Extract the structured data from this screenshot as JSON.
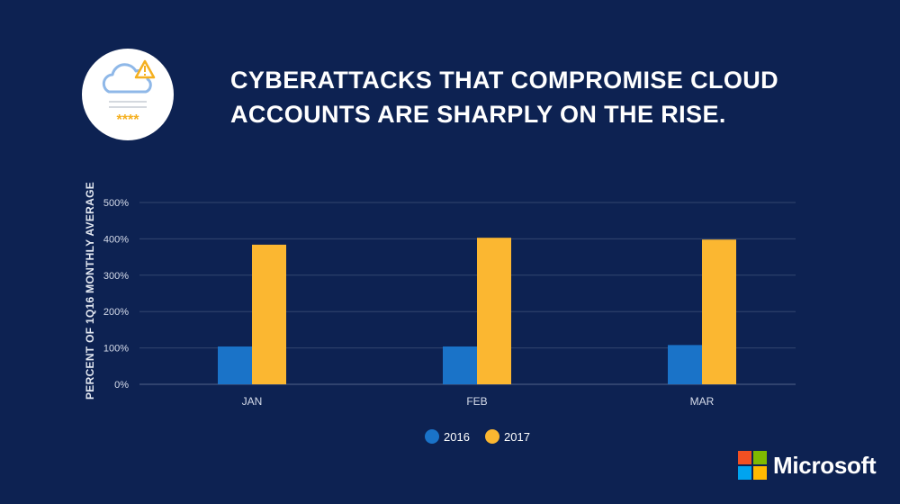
{
  "title_lines": [
    "CYBERATTACKS THAT COMPROMISE CLOUD",
    "ACCOUNTS ARE SHARPLY ON THE RISE."
  ],
  "badge": {
    "icon": "cloud-warning-icon",
    "password_mask": "****"
  },
  "brand": {
    "name": "Microsoft",
    "colors": [
      "#f25022",
      "#7fba00",
      "#00a4ef",
      "#ffb900"
    ]
  },
  "chart_data": {
    "type": "bar",
    "ylabel": "PERCENT OF 1Q16 MONTHLY AVERAGE",
    "xlabel": "",
    "categories": [
      "JAN",
      "FEB",
      "MAR"
    ],
    "ylim": [
      0,
      500
    ],
    "yticks": [
      "0%",
      "100%",
      "200%",
      "300%",
      "400%",
      "500%"
    ],
    "yticks_values": [
      0,
      100,
      200,
      300,
      400,
      500
    ],
    "grid": true,
    "legend_position": "bottom-center",
    "series": [
      {
        "name": "2016",
        "color": "#1a73c8",
        "values": [
          104,
          104,
          108
        ]
      },
      {
        "name": "2017",
        "color": "#fbb731",
        "values": [
          384,
          403,
          398
        ]
      }
    ]
  }
}
